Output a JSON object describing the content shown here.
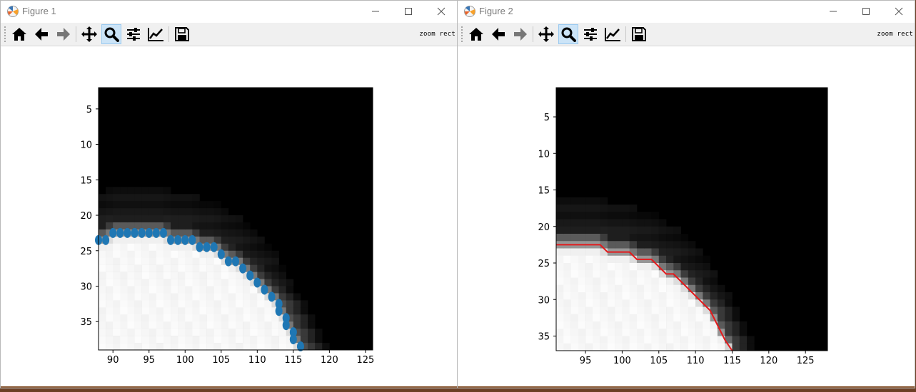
{
  "windows": [
    {
      "title": "Figure 1",
      "mode_text": "zoom rect",
      "active_tool": "zoom",
      "xticks": [
        "90",
        "95",
        "100",
        "105",
        "110",
        "115",
        "120",
        "125"
      ],
      "yticks": [
        "5",
        "10",
        "15",
        "20",
        "25",
        "30",
        "35"
      ],
      "overlay": "scatter",
      "overlay_color": "#1f77b4"
    },
    {
      "title": "Figure 2",
      "mode_text": "zoom rect",
      "active_tool": "zoom",
      "xticks": [
        "95",
        "100",
        "105",
        "110",
        "115",
        "120",
        "125"
      ],
      "yticks": [
        "5",
        "10",
        "15",
        "20",
        "25",
        "30",
        "35"
      ],
      "overlay": "line",
      "overlay_color": "#e31a1c"
    }
  ],
  "toolbar_icons": [
    "home-icon",
    "back-arrow-icon",
    "forward-arrow-icon",
    "pan-icon",
    "zoom-icon",
    "configure-subplots-icon",
    "edit-axis-icon",
    "save-icon"
  ],
  "chart_data": [
    {
      "type": "heatmap",
      "colormap": "gray",
      "xlim": [
        88,
        126
      ],
      "ylim": [
        39,
        2
      ],
      "xtick_values": [
        90,
        95,
        100,
        105,
        110,
        115,
        120,
        125
      ],
      "ytick_values": [
        5,
        10,
        15,
        20,
        25,
        30,
        35
      ],
      "overlay": {
        "type": "scatter",
        "color": "#1f77b4",
        "x": [
          88,
          89,
          90,
          91,
          92,
          93,
          94,
          95,
          96,
          97,
          98,
          99,
          100,
          101,
          102,
          103,
          104,
          105,
          106,
          107,
          108,
          109,
          110,
          111,
          112,
          113,
          113,
          114,
          114,
          115,
          115,
          116
        ],
        "y": [
          23.5,
          23.5,
          22.5,
          22.5,
          22.5,
          22.5,
          22.5,
          22.5,
          22.5,
          22.5,
          23.5,
          23.5,
          23.5,
          23.5,
          24.5,
          24.5,
          24.5,
          25.5,
          26.5,
          26.5,
          27.5,
          28.5,
          29.5,
          30.5,
          31.5,
          32.5,
          33.5,
          34.5,
          35.5,
          36.5,
          37.5,
          38.5
        ]
      }
    },
    {
      "type": "heatmap",
      "colormap": "gray",
      "xlim": [
        91,
        128
      ],
      "ylim": [
        37,
        1
      ],
      "xtick_values": [
        95,
        100,
        105,
        110,
        115,
        120,
        125
      ],
      "ytick_values": [
        5,
        10,
        15,
        20,
        25,
        30,
        35
      ],
      "overlay": {
        "type": "line",
        "color": "#e31a1c",
        "x": [
          91,
          97,
          98,
          101,
          102,
          104,
          105,
          106,
          107,
          108,
          109,
          110,
          111,
          112,
          113,
          114,
          115
        ],
        "y": [
          22.5,
          22.5,
          23.5,
          23.5,
          24.5,
          24.5,
          25.5,
          26.5,
          26.5,
          27.5,
          28.5,
          29.5,
          30.5,
          31.5,
          33.5,
          35.5,
          37
        ]
      }
    }
  ]
}
